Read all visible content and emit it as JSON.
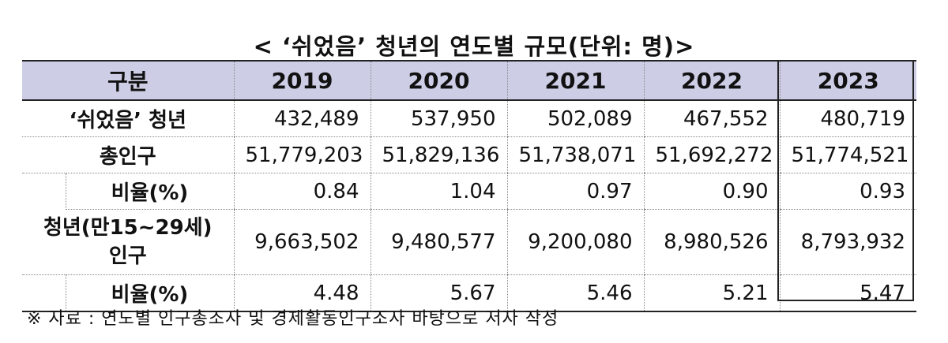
{
  "title": "< ‘쉬었음’ 청년의 연도별 규모(단위: 명)>",
  "table": {
    "header": {
      "category": "구분",
      "years": [
        "2019",
        "2020",
        "2021",
        "2022",
        "2023"
      ]
    },
    "rows": {
      "rested_youth": {
        "label": "‘쉬었음’ 청년",
        "values": [
          "432,489",
          "537,950",
          "502,089",
          "467,552",
          "480,719"
        ]
      },
      "total_population": {
        "label": "총인구",
        "values": [
          "51,779,203",
          "51,829,136",
          "51,738,071",
          "51,692,272",
          "51,774,521"
        ]
      },
      "ratio_total": {
        "label": "비율(%)",
        "values": [
          "0.84",
          "1.04",
          "0.97",
          "0.90",
          "0.93"
        ]
      },
      "youth_population": {
        "label_line1": "청년(만15~29세)",
        "label_line2": "인구",
        "values": [
          "9,663,502",
          "9,480,577",
          "9,200,080",
          "8,980,526",
          "8,793,932"
        ]
      },
      "ratio_youth": {
        "label": "비율(%)",
        "values": [
          "4.48",
          "5.67",
          "5.46",
          "5.21",
          "5.47"
        ]
      }
    }
  },
  "source": "※ 자료 : 연도별 인구총조사 및 경제활동인구조사 바탕으로 저자 작성"
}
